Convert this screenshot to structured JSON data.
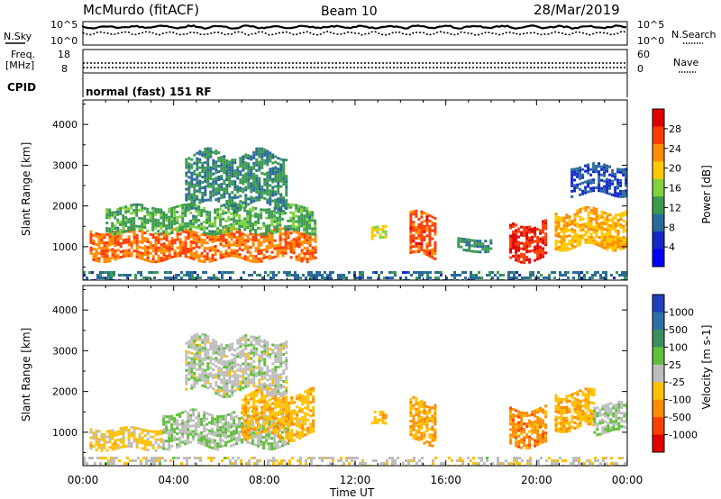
{
  "header": {
    "station": "McMurdo (fitACF)",
    "beam": "Beam 10",
    "date": "28/Mar/2019"
  },
  "noise_panel": {
    "left_label": "N.Sky",
    "right_label": "N.Search",
    "left_ticks": [
      "10^5",
      "10^0"
    ],
    "right_ticks": [
      "10^5",
      "10^0"
    ]
  },
  "freq_panel": {
    "left_label_line1": "Freq.",
    "left_label_line2": "[MHz]",
    "left_ticks": [
      "18",
      "8"
    ],
    "right_label": "Nave",
    "right_ticks": [
      "60",
      "0"
    ]
  },
  "cpid_panel": {
    "label": "CPID",
    "program": "normal (fast) 151 RF"
  },
  "power_panel": {
    "ylabel": "Slant Range [km]",
    "yticks": [
      "4000",
      "3000",
      "2000",
      "1000"
    ],
    "colorbar_label": "Power [dB]",
    "colorbar_ticks": [
      "28",
      "24",
      "20",
      "16",
      "12",
      "8",
      "4"
    ],
    "colorbar_colors": [
      "#e00000",
      "#ff3b00",
      "#ff8c00",
      "#ffc800",
      "#7fd23c",
      "#3c9a50",
      "#2a6a9a",
      "#1428c8",
      "#0000ff"
    ]
  },
  "velocity_panel": {
    "ylabel": "Slant Range [km]",
    "yticks": [
      "4000",
      "3000",
      "2000",
      "1000"
    ],
    "colorbar_label": "Velocity [m s-1]",
    "colorbar_ticks": [
      "1000",
      "500",
      "100",
      "25",
      "-25",
      "-100",
      "-500",
      "-1000"
    ],
    "colorbar_colors": [
      "#1f3fbf",
      "#2e6fa8",
      "#3c8e60",
      "#5fbf3a",
      "#bdbdbd",
      "#ffc000",
      "#ff8c00",
      "#ff4000",
      "#e00000"
    ]
  },
  "x_axis": {
    "ticks": [
      "00:00",
      "04:00",
      "08:00",
      "12:00",
      "16:00",
      "20:00",
      "00:00"
    ],
    "label": "Time UT"
  },
  "chart_data": [
    {
      "type": "heatmap",
      "title": "Power [dB]",
      "ylabel": "Slant Range [km]",
      "xlabel": "Time UT",
      "xlim": [
        0,
        24
      ],
      "ylim": [
        180,
        4600
      ],
      "clim": [
        0,
        30
      ],
      "regions": [
        {
          "t": [
            0.3,
            10.2
          ],
          "r": [
            700,
            1400
          ],
          "value": 24
        },
        {
          "t": [
            1.0,
            10.2
          ],
          "r": [
            1400,
            2000
          ],
          "value": 12
        },
        {
          "t": [
            4.5,
            9.0
          ],
          "r": [
            2000,
            3300
          ],
          "value": 10
        },
        {
          "t": [
            12.7,
            13.3
          ],
          "r": [
            1200,
            1500
          ],
          "value": 18
        },
        {
          "t": [
            14.4,
            15.5
          ],
          "r": [
            800,
            1800
          ],
          "value": 26
        },
        {
          "t": [
            16.5,
            18.0
          ],
          "r": [
            900,
            1200
          ],
          "value": 10
        },
        {
          "t": [
            18.8,
            20.4
          ],
          "r": [
            700,
            1600
          ],
          "value": 28
        },
        {
          "t": [
            20.8,
            24.0
          ],
          "r": [
            1000,
            1900
          ],
          "value": 20
        },
        {
          "t": [
            21.5,
            24.0
          ],
          "r": [
            2300,
            3000
          ],
          "value": 6
        },
        {
          "t": [
            0.0,
            24.0
          ],
          "r": [
            180,
            400
          ],
          "value": 8
        }
      ]
    },
    {
      "type": "heatmap",
      "title": "Velocity [m s-1]",
      "ylabel": "Slant Range [km]",
      "xlabel": "Time UT",
      "xlim": [
        0,
        24
      ],
      "ylim": [
        180,
        4600
      ],
      "clim": [
        -1000,
        1000
      ],
      "regions": [
        {
          "t": [
            0.3,
            3.5
          ],
          "r": [
            600,
            1100
          ],
          "value": -200
        },
        {
          "t": [
            3.5,
            9.0
          ],
          "r": [
            700,
            1500
          ],
          "value": 100
        },
        {
          "t": [
            7.0,
            10.2
          ],
          "r": [
            900,
            2000
          ],
          "value": -300
        },
        {
          "t": [
            4.5,
            9.0
          ],
          "r": [
            2000,
            3300
          ],
          "value": 20
        },
        {
          "t": [
            12.7,
            13.3
          ],
          "r": [
            1200,
            1500
          ],
          "value": -300
        },
        {
          "t": [
            14.4,
            15.5
          ],
          "r": [
            800,
            1800
          ],
          "value": -400
        },
        {
          "t": [
            18.8,
            20.4
          ],
          "r": [
            700,
            1600
          ],
          "value": -500
        },
        {
          "t": [
            20.8,
            22.5
          ],
          "r": [
            1100,
            2000
          ],
          "value": -300
        },
        {
          "t": [
            22.5,
            24.0
          ],
          "r": [
            1000,
            1700
          ],
          "value": 100
        },
        {
          "t": [
            0.0,
            24.0
          ],
          "r": [
            180,
            400
          ],
          "value": -50
        }
      ]
    }
  ]
}
